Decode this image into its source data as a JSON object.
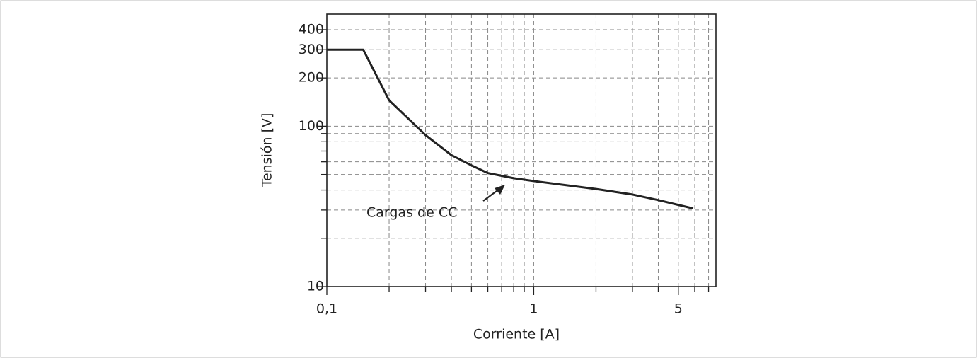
{
  "chart_data": {
    "type": "line",
    "x_label": "Corriente [A]",
    "y_label": "Tensión [V]",
    "x_scale": "log",
    "y_scale": "log",
    "xlim": [
      0.1,
      7.6
    ],
    "ylim": [
      10,
      500
    ],
    "xticks": [
      {
        "value": 0.1,
        "label": "0,1"
      },
      1,
      5
    ],
    "yticks": [
      10,
      100,
      200,
      300,
      400
    ],
    "x_minor_ticks": [
      0.2,
      0.3,
      0.4,
      0.5,
      0.6,
      0.7,
      0.8,
      0.9,
      2,
      3,
      4,
      6,
      7
    ],
    "y_minor_ticks": [
      20,
      30,
      40,
      50,
      60,
      70,
      80,
      90
    ],
    "grid": true,
    "series": [
      {
        "color": "#222222",
        "x": [
          0.1,
          0.15,
          0.2,
          0.3,
          0.4,
          0.5,
          0.6,
          0.8,
          1,
          2,
          3,
          4,
          5,
          5.9
        ],
        "values": [
          300,
          300,
          145,
          88,
          66,
          57,
          51,
          47.4,
          45.5,
          40.6,
          37.5,
          34.6,
          32.3,
          30.7
        ]
      }
    ],
    "annotation": "Cargas de CC"
  }
}
